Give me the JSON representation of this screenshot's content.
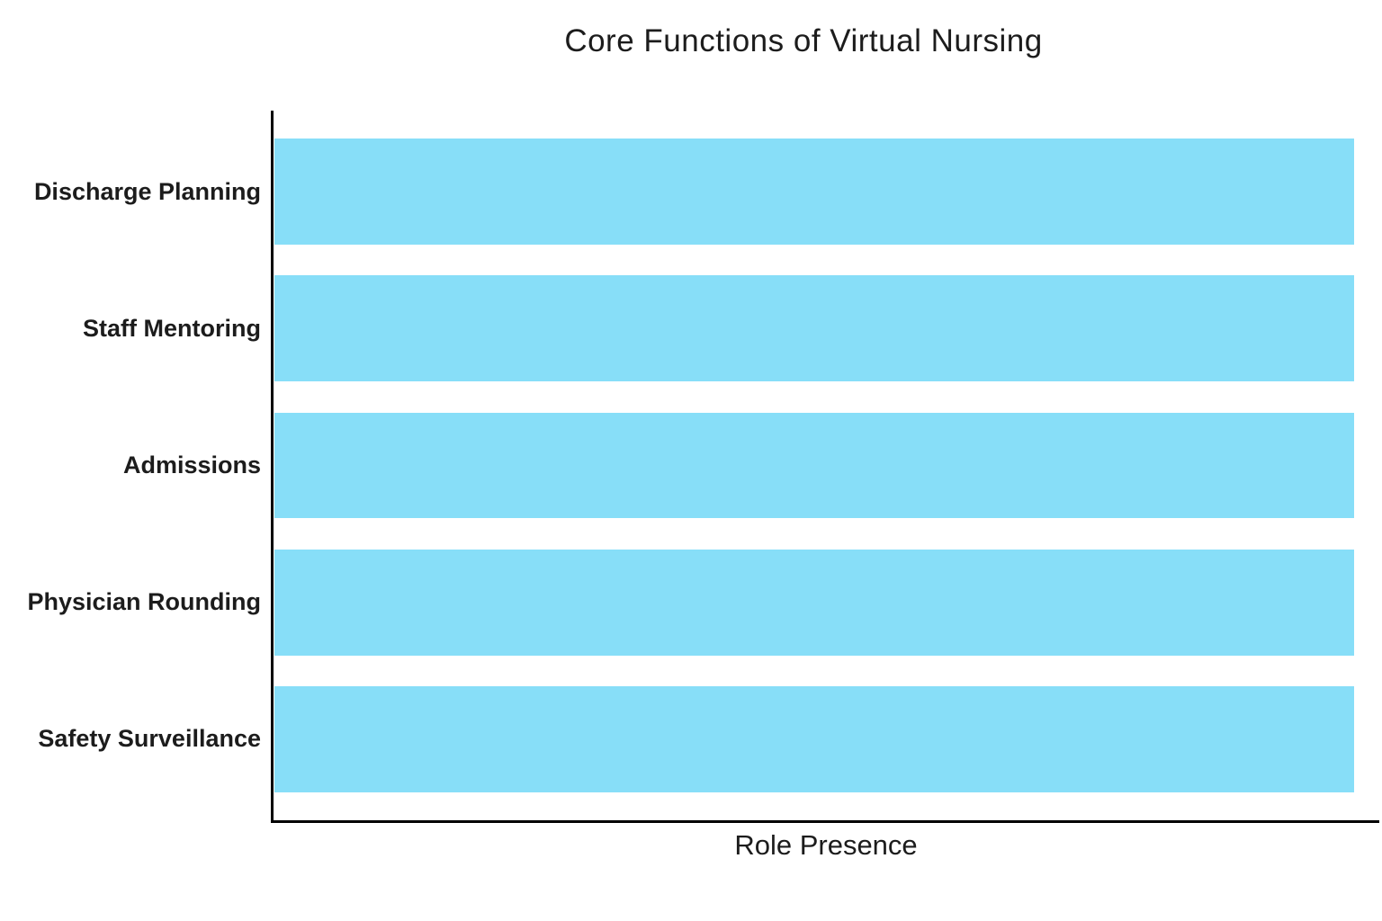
{
  "chart_data": {
    "type": "bar",
    "orientation": "horizontal",
    "title": "Core Functions of Virtual Nursing",
    "xlabel": "Role Presence",
    "ylabel": "",
    "categories": [
      "Discharge Planning",
      "Staff Mentoring",
      "Admissions",
      "Physician Rounding",
      "Safety Surveillance"
    ],
    "values": [
      1,
      1,
      1,
      1,
      1
    ],
    "xlim": [
      0,
      1
    ],
    "grid": false,
    "legend": false,
    "tick_labels_x": [],
    "bar_color": "#87DEF8",
    "axis_color": "#000000",
    "text_color": "#1c1c1c",
    "background_color": "#ffffff"
  }
}
